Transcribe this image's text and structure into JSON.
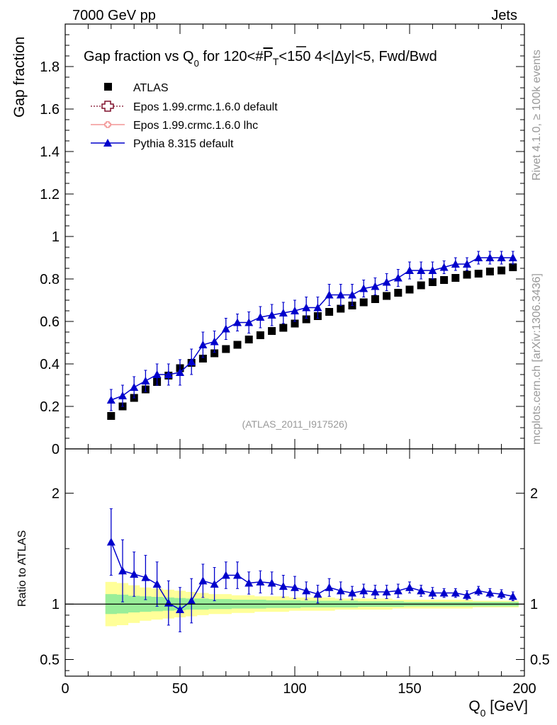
{
  "header": {
    "energy_label": "7000 GeV pp",
    "process_label": "Jets"
  },
  "side_labels": {
    "rivet": "Rivet 4.1.0, ≥ 100k events",
    "mcplots": "mcplots.cern.ch [arXiv:1306.3436]"
  },
  "chart_data": {
    "type": "scatter",
    "title": "Gap fraction vs Q0 for 120<#P_T<150  4<|Δy|<5, Fwd/Bwd",
    "title_parts": {
      "pre": "Gap fraction vs Q",
      "sub0": "0",
      "mid": " for 120<#",
      "p": "P",
      "subT": "T",
      "post": "<150  4<|Δy|<5, Fwd/Bwd"
    },
    "analysis_id": "(ATLAS_2011_I917526)",
    "xlabel": "Q",
    "xlabel_sub": "0",
    "xlabel_unit": " [GeV]",
    "ylabel": "Gap fraction",
    "ratio_ylabel": "Ratio to ATLAS",
    "xlim": [
      0,
      200
    ],
    "ylim": [
      0,
      2.0
    ],
    "ratio_ylim": [
      0.35,
      2.4
    ],
    "x_ticks": [
      0,
      50,
      100,
      150,
      200
    ],
    "x_tick_labels": [
      "0",
      "50",
      "100",
      "150",
      "200"
    ],
    "y_ticks": [
      0,
      0.2,
      0.4,
      0.6,
      0.8,
      1,
      1.2,
      1.4,
      1.6,
      1.8
    ],
    "y_tick_labels": [
      "0",
      "0.2",
      "0.4",
      "0.6",
      "0.8",
      "1",
      "1.2",
      "1.4",
      "1.6",
      "1.8"
    ],
    "ratio_ticks": [
      0.5,
      1,
      2
    ],
    "ratio_tick_labels": [
      "0.5",
      "1",
      "2"
    ],
    "legend": [
      {
        "name": "ATLAS",
        "color": "#000000",
        "marker": "square"
      },
      {
        "name": "Epos 1.99.crmc.1.6.0 default",
        "color": "#7f0f2a",
        "marker": "open-cross"
      },
      {
        "name": "Epos 1.99.crmc.1.6.0 lhc",
        "color": "#f08080",
        "marker": "open-cross-small"
      },
      {
        "name": "Pythia 8.315 default",
        "color": "#0000cc",
        "marker": "triangle"
      }
    ],
    "legend_position": "top-left",
    "x": [
      20,
      25,
      30,
      35,
      40,
      45,
      50,
      55,
      60,
      65,
      70,
      75,
      80,
      85,
      90,
      95,
      100,
      105,
      110,
      115,
      120,
      125,
      130,
      135,
      140,
      145,
      150,
      155,
      160,
      165,
      170,
      175,
      180,
      185,
      190,
      195
    ],
    "series": [
      {
        "name": "ATLAS",
        "color": "#000000",
        "values": [
          0.155,
          0.2,
          0.24,
          0.28,
          0.315,
          0.345,
          0.38,
          0.405,
          0.425,
          0.45,
          0.47,
          0.49,
          0.515,
          0.535,
          0.555,
          0.57,
          0.59,
          0.61,
          0.625,
          0.645,
          0.66,
          0.675,
          0.69,
          0.705,
          0.72,
          0.735,
          0.75,
          0.77,
          0.785,
          0.795,
          0.805,
          0.82,
          0.825,
          0.835,
          0.84,
          0.855
        ]
      },
      {
        "name": "Pythia 8.315 default",
        "color": "#0000cc",
        "values": [
          0.23,
          0.25,
          0.29,
          0.32,
          0.35,
          0.35,
          0.36,
          0.41,
          0.49,
          0.505,
          0.565,
          0.595,
          0.595,
          0.62,
          0.63,
          0.64,
          0.65,
          0.665,
          0.665,
          0.725,
          0.725,
          0.725,
          0.755,
          0.765,
          0.785,
          0.805,
          0.84,
          0.84,
          0.84,
          0.855,
          0.87,
          0.87,
          0.9,
          0.9,
          0.9,
          0.9
        ],
        "errors": [
          0.05,
          0.05,
          0.05,
          0.05,
          0.05,
          0.05,
          0.06,
          0.06,
          0.06,
          0.05,
          0.05,
          0.04,
          0.05,
          0.05,
          0.05,
          0.05,
          0.05,
          0.05,
          0.05,
          0.05,
          0.05,
          0.05,
          0.04,
          0.04,
          0.04,
          0.04,
          0.04,
          0.04,
          0.04,
          0.03,
          0.03,
          0.03,
          0.03,
          0.03,
          0.03,
          0.03
        ],
        "ratio": [
          1.56,
          1.3,
          1.27,
          1.24,
          1.18,
          1.01,
          0.95,
          1.03,
          1.21,
          1.18,
          1.26,
          1.26,
          1.19,
          1.2,
          1.19,
          1.16,
          1.15,
          1.12,
          1.09,
          1.15,
          1.12,
          1.1,
          1.12,
          1.11,
          1.11,
          1.12,
          1.15,
          1.12,
          1.1,
          1.1,
          1.1,
          1.08,
          1.12,
          1.1,
          1.09,
          1.07
        ],
        "ratio_errors": [
          0.3,
          0.28,
          0.2,
          0.2,
          0.2,
          0.2,
          0.2,
          0.2,
          0.15,
          0.15,
          0.12,
          0.12,
          0.1,
          0.1,
          0.1,
          0.1,
          0.1,
          0.08,
          0.08,
          0.08,
          0.08,
          0.06,
          0.06,
          0.06,
          0.06,
          0.06,
          0.05,
          0.05,
          0.05,
          0.04,
          0.04,
          0.04,
          0.04,
          0.04,
          0.04,
          0.04
        ]
      }
    ],
    "ratio_bands": {
      "yellow_halfwidth": [
        0.2,
        0.19,
        0.17,
        0.15,
        0.14,
        0.13,
        0.12,
        0.11,
        0.1,
        0.09,
        0.09,
        0.08,
        0.08,
        0.07,
        0.07,
        0.07,
        0.06,
        0.06,
        0.06,
        0.06,
        0.05,
        0.05,
        0.05,
        0.05,
        0.05,
        0.04,
        0.04,
        0.04,
        0.04,
        0.04,
        0.04,
        0.04,
        0.03,
        0.03,
        0.03,
        0.03
      ],
      "green_halfwidth": [
        0.09,
        0.085,
        0.075,
        0.07,
        0.065,
        0.06,
        0.055,
        0.05,
        0.05,
        0.045,
        0.045,
        0.04,
        0.04,
        0.04,
        0.035,
        0.035,
        0.035,
        0.03,
        0.03,
        0.03,
        0.03,
        0.03,
        0.025,
        0.025,
        0.025,
        0.025,
        0.02,
        0.02,
        0.02,
        0.02,
        0.02,
        0.02,
        0.02,
        0.02,
        0.02,
        0.02
      ]
    }
  }
}
